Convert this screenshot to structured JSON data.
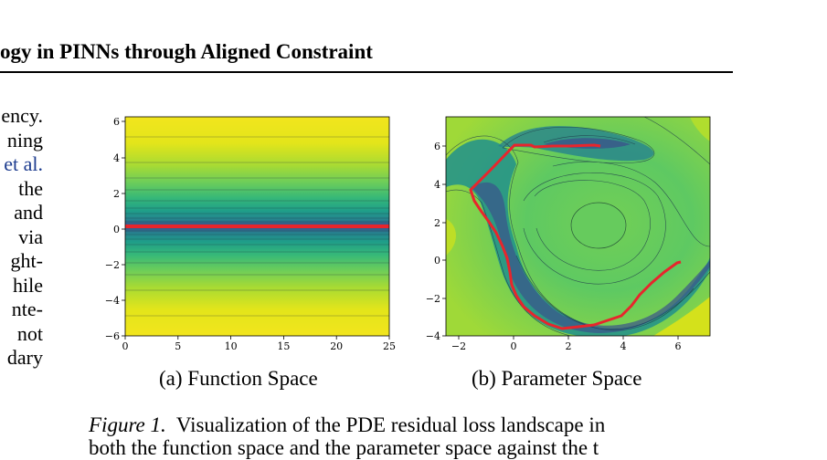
{
  "header": {
    "running_title": "ogy in PINNs through Aligned Constraint"
  },
  "left_column": {
    "lines": [
      {
        "text": "ency.",
        "cite": false
      },
      {
        "text": "ning",
        "cite": false
      },
      {
        "text": "et al.",
        "cite": true
      },
      {
        "text": "the",
        "cite": false
      },
      {
        "text": "and",
        "cite": false
      },
      {
        "text": "via",
        "cite": false
      },
      {
        "text": "ght-",
        "cite": false
      },
      {
        "text": "hile",
        "cite": false
      },
      {
        "text": "nte-",
        "cite": false
      },
      {
        "text": "not",
        "cite": false
      },
      {
        "text": "dary",
        "cite": false
      }
    ]
  },
  "figure": {
    "label": "Figure 1.",
    "caption": "Visualization of the PDE residual loss landscape in",
    "caption_line2": "both the function space and the parameter space against the t",
    "panel_a": {
      "caption": "(a) Function Space",
      "x_ticks": [
        "0",
        "5",
        "10",
        "15",
        "20",
        "25"
      ],
      "y_ticks": [
        "−6",
        "−4",
        "−2",
        "0",
        "2",
        "4",
        "6"
      ]
    },
    "panel_b": {
      "caption": "(b) Parameter Space",
      "x_ticks": [
        "−2",
        "0",
        "2",
        "4",
        "6"
      ],
      "y_ticks": [
        "−4",
        "−2",
        "0",
        "2",
        "4",
        "6"
      ]
    }
  },
  "colors": {
    "colormap": [
      "#440154",
      "#3b528b",
      "#21918c",
      "#5ec962",
      "#fde725"
    ],
    "trajectory": "#e8252c",
    "citation": "#1c3b8e"
  }
}
